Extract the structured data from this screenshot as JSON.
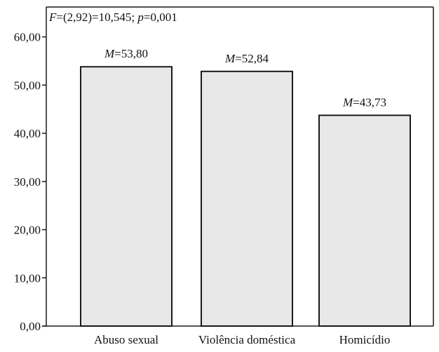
{
  "chart_data": {
    "type": "bar",
    "title": "",
    "stats_annotation": {
      "parts": [
        {
          "text": "F",
          "italic": true
        },
        {
          "text": "=(2,92)=10,545; ",
          "italic": false
        },
        {
          "text": "p",
          "italic": true
        },
        {
          "text": "=0,001",
          "italic": false
        }
      ]
    },
    "xlabel": "",
    "ylabel": "",
    "categories": [
      "Abuso sexual",
      "Violência doméstica",
      "Homicídio"
    ],
    "values": [
      53.8,
      52.84,
      43.73
    ],
    "value_labels": [
      {
        "prefix": "M",
        "text": "=53,80"
      },
      {
        "prefix": "M",
        "text": "=52,84"
      },
      {
        "prefix": "M",
        "text": "=43,73"
      }
    ],
    "ylim": [
      0,
      60
    ],
    "yticks": [
      0,
      10,
      20,
      30,
      40,
      50,
      60
    ],
    "ytick_labels": [
      "0,00",
      "10,00",
      "20,00",
      "30,00",
      "40,00",
      "50,00",
      "60,00"
    ],
    "y_max_plot": 66.2,
    "grid": false,
    "legend": "none",
    "colors": {
      "bar_fill": "#e8e8e8",
      "bar_stroke": "#1a1a1a",
      "axis": "#1a1a1a",
      "frame": "#1a1a1a"
    }
  }
}
